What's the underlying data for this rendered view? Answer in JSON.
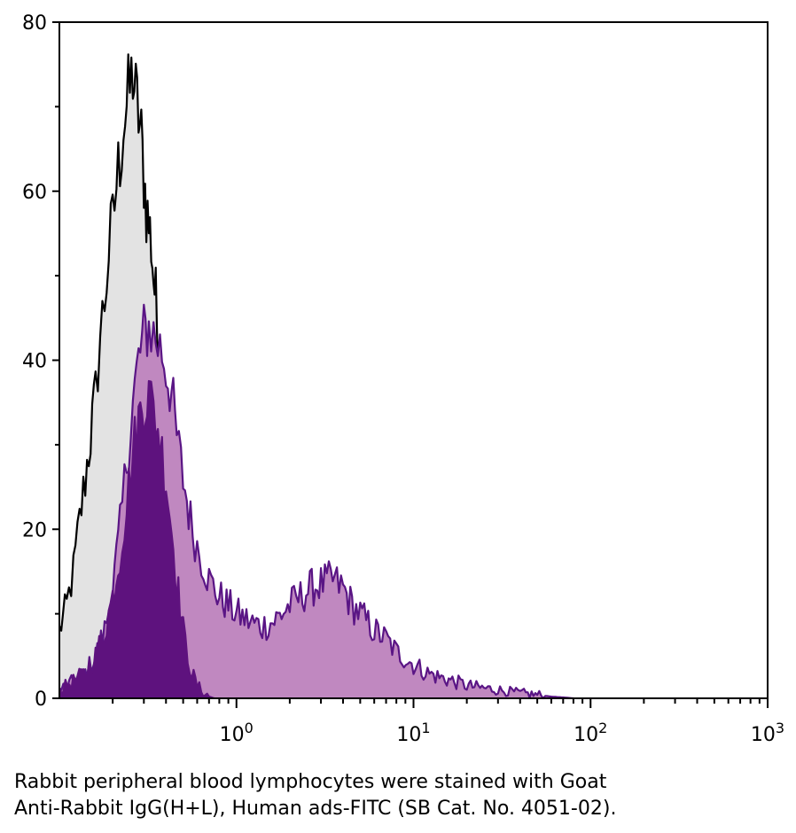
{
  "chart_data": {
    "type": "area",
    "xscale": "log",
    "xlim": [
      0.1,
      1000
    ],
    "ylim": [
      0,
      80
    ],
    "xticks": [
      {
        "value": 1,
        "base": "10",
        "exp": "0"
      },
      {
        "value": 10,
        "base": "10",
        "exp": "1"
      },
      {
        "value": 100,
        "base": "10",
        "exp": "2"
      },
      {
        "value": 1000,
        "base": "10",
        "exp": "3"
      }
    ],
    "yticks": [
      {
        "value": 0,
        "label": "0"
      },
      {
        "value": 20,
        "label": "20"
      },
      {
        "value": 40,
        "label": "40"
      },
      {
        "value": 60,
        "label": "60"
      },
      {
        "value": 80,
        "label": "80"
      }
    ],
    "grid": false,
    "series": [
      {
        "color_fill": "#e3e3e3",
        "color_line": "#000000",
        "x": [
          0.1,
          0.11,
          0.12,
          0.13,
          0.14,
          0.15,
          0.16,
          0.17,
          0.18,
          0.19,
          0.2,
          0.21,
          0.22,
          0.23,
          0.24,
          0.25,
          0.26,
          0.27,
          0.28,
          0.29,
          0.3,
          0.31,
          0.32,
          0.33,
          0.34,
          0.35,
          0.36,
          0.38,
          0.4,
          0.42,
          0.44,
          0.46,
          0.48,
          0.5,
          0.55,
          0.6,
          0.65,
          0.7,
          0.75
        ],
        "y": [
          8,
          11,
          15,
          21,
          26,
          31,
          36,
          43,
          47,
          53,
          56,
          61,
          64,
          68,
          70,
          72,
          74,
          71,
          69,
          66,
          62,
          58,
          56,
          54,
          50,
          47,
          43,
          37,
          30,
          23,
          16,
          11,
          7,
          5,
          3,
          2,
          1,
          0.5,
          0
        ]
      },
      {
        "color_fill": "#c088c0",
        "color_line": "#5a1585",
        "x": [
          0.1,
          0.12,
          0.14,
          0.16,
          0.18,
          0.2,
          0.22,
          0.24,
          0.26,
          0.28,
          0.3,
          0.32,
          0.34,
          0.36,
          0.38,
          0.4,
          0.43,
          0.46,
          0.5,
          0.55,
          0.6,
          0.65,
          0.7,
          0.8,
          0.9,
          1,
          1.2,
          1.4,
          1.6,
          1.8,
          2,
          2.3,
          2.6,
          3,
          3.5,
          4,
          4.5,
          5,
          6,
          7,
          8,
          10,
          12,
          14,
          17,
          20,
          25,
          30,
          40,
          50,
          60,
          70,
          80
        ],
        "y": [
          1,
          2,
          3,
          5,
          8,
          13,
          20,
          28,
          35,
          40,
          43,
          44,
          43,
          42,
          41,
          39,
          36,
          31,
          26,
          21,
          18,
          16,
          14,
          12,
          11,
          10,
          9,
          8.5,
          9,
          10,
          11,
          12,
          13,
          13.5,
          14,
          13,
          11,
          10,
          8,
          7,
          5.5,
          4,
          3,
          2.5,
          2,
          1.5,
          1.2,
          1,
          0.6,
          0.4,
          0.2,
          0.1,
          0
        ]
      },
      {
        "color_fill": "#5e127e",
        "color_line": "#5e127e",
        "x": [
          0.1,
          0.12,
          0.14,
          0.16,
          0.18,
          0.2,
          0.22,
          0.24,
          0.26,
          0.28,
          0.3,
          0.32,
          0.34,
          0.36,
          0.38,
          0.4,
          0.42,
          0.44,
          0.46,
          0.48,
          0.5,
          0.53,
          0.56,
          0.6,
          0.65,
          0.7,
          0.75
        ],
        "y": [
          1,
          2,
          3,
          5,
          8,
          12,
          17,
          23,
          29,
          33,
          35,
          36,
          34,
          32,
          29,
          26,
          22,
          18,
          14,
          11,
          8,
          5,
          3,
          1.5,
          0.7,
          0.2,
          0
        ]
      }
    ]
  },
  "caption": {
    "line1": "Rabbit peripheral blood lymphocytes were stained with Goat",
    "line2": "Anti-Rabbit IgG(H+L), Human ads-FITC (SB Cat. No. 4051-02)."
  }
}
